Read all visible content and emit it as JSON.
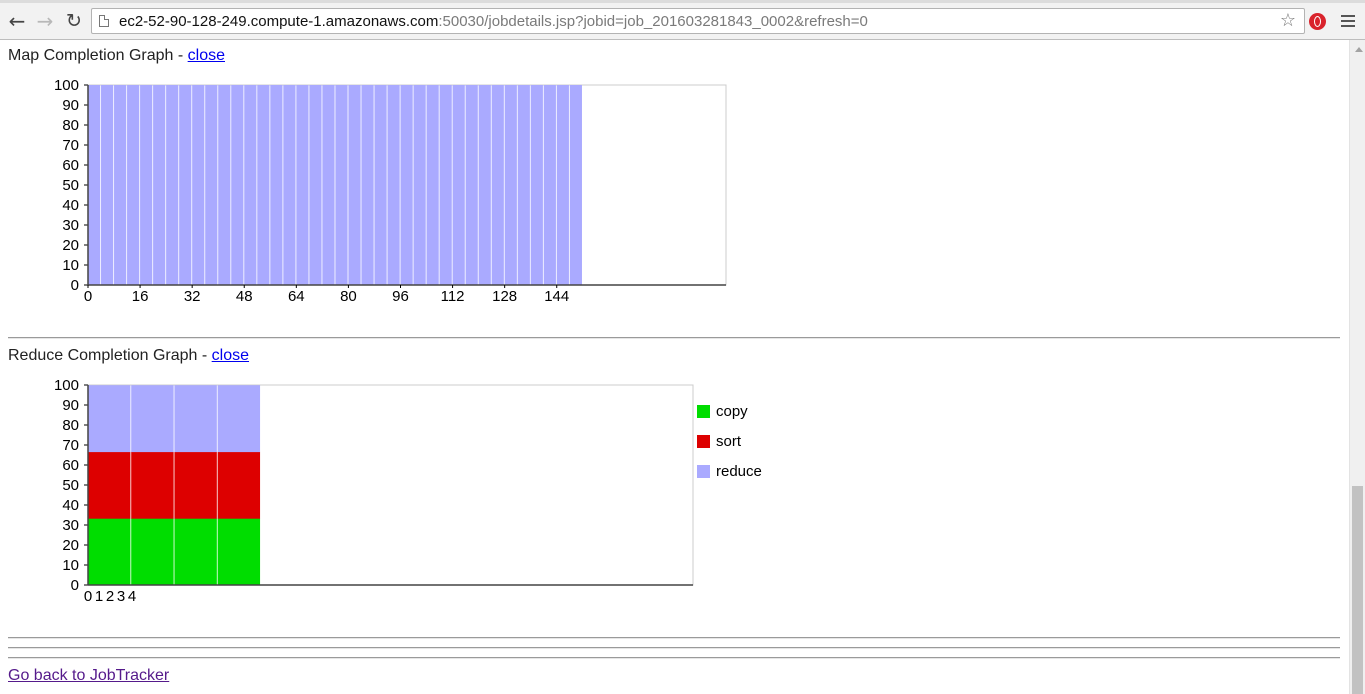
{
  "browser": {
    "url_host": "ec2-52-90-128-249.compute-1.amazonaws.com",
    "url_path": ":50030/jobdetails.jsp?jobid=job_201603281843_0002&refresh=0",
    "icons": [
      "back-arrow-icon",
      "forward-arrow-icon",
      "reload-icon",
      "page-icon",
      "star-icon",
      "opera-icon",
      "menu-icon"
    ]
  },
  "map_section": {
    "title": "Map Completion Graph - ",
    "close_label": "close "
  },
  "reduce_section": {
    "title": "Reduce Completion Graph - ",
    "close_label": "close "
  },
  "footer": {
    "back_link": "Go back to JobTracker"
  },
  "chart_data": [
    {
      "type": "bar",
      "title": "",
      "xlabel": "",
      "ylabel": "",
      "ylim": [
        0,
        100
      ],
      "y_ticks": [
        0,
        10,
        20,
        30,
        40,
        50,
        60,
        70,
        80,
        90,
        100
      ],
      "x_tick_labels": [
        "0",
        "16",
        "32",
        "48",
        "64",
        "80",
        "96",
        "112",
        "128",
        "144"
      ],
      "x_ticks": [
        0,
        16,
        32,
        48,
        64,
        80,
        96,
        112,
        128,
        144
      ],
      "xlim": [
        0,
        196
      ],
      "bar_width": 4,
      "bar_count": 38,
      "bar_value": 100,
      "color": "#aaaaff",
      "series": [
        {
          "values": [
            100,
            100,
            100,
            100,
            100,
            100,
            100,
            100,
            100,
            100,
            100,
            100,
            100,
            100,
            100,
            100,
            100,
            100,
            100,
            100,
            100,
            100,
            100,
            100,
            100,
            100,
            100,
            100,
            100,
            100,
            100,
            100,
            100,
            100,
            100,
            100,
            100,
            100
          ]
        }
      ]
    },
    {
      "type": "bar",
      "stacked": true,
      "title": "",
      "xlabel": "",
      "ylabel": "",
      "ylim": [
        0,
        100
      ],
      "y_ticks": [
        0,
        10,
        20,
        30,
        40,
        50,
        60,
        70,
        80,
        90,
        100
      ],
      "x_tick_labels": [
        "0",
        "1",
        "2",
        "3",
        "4"
      ],
      "categories": [
        "0",
        "1",
        "2",
        "3"
      ],
      "xlim": [
        0,
        56
      ],
      "legend_position": "right",
      "series": [
        {
          "name": "copy",
          "color": "#00dd00",
          "values": [
            33.3,
            33.3,
            33.3,
            33.3
          ]
        },
        {
          "name": "sort",
          "color": "#dd0000",
          "values": [
            33.3,
            33.3,
            33.3,
            33.3
          ]
        },
        {
          "name": "reduce",
          "color": "#aaaaff",
          "values": [
            33.3,
            33.3,
            33.3,
            33.3
          ]
        }
      ]
    }
  ]
}
